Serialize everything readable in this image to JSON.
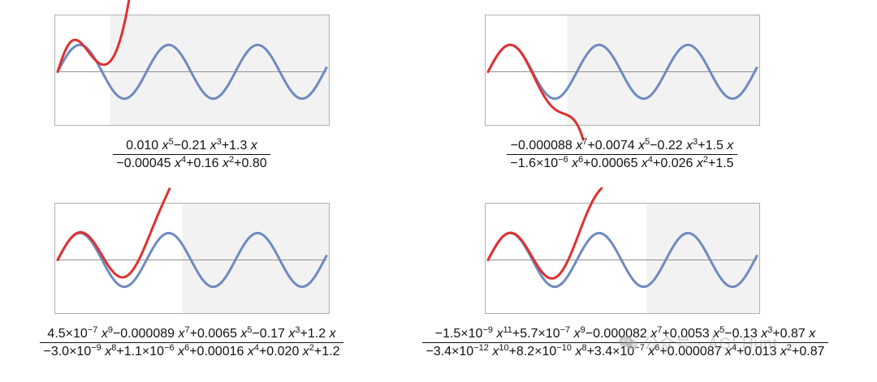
{
  "chart_data": [
    {
      "type": "line",
      "x_range": [
        0,
        19
      ],
      "y_range": [
        -1.7,
        2.0
      ],
      "shaded_from_x": 3.7,
      "series": [
        {
          "values_fn": "sin(x)",
          "color": "#6f8ac0"
        },
        {
          "values_fn": "(0.010 x^5 - 0.21 x^3 + 1.3 x) / (-0.00045 x^4 + 0.16 x^2 + 0.80)",
          "color": "#e03030"
        }
      ],
      "formula": {
        "numerator": [
          {
            "t": "0.010 "
          },
          {
            "i": "x"
          },
          {
            "s": "5"
          },
          {
            "t": "−0.21 "
          },
          {
            "i": "x"
          },
          {
            "s": "3"
          },
          {
            "t": "+1.3 "
          },
          {
            "i": "x"
          }
        ],
        "denominator": [
          {
            "t": "−0.00045 "
          },
          {
            "i": "x"
          },
          {
            "s": "4"
          },
          {
            "t": "+0.16 "
          },
          {
            "i": "x"
          },
          {
            "s": "2"
          },
          {
            "t": "+0.80"
          }
        ]
      }
    },
    {
      "type": "line",
      "x_range": [
        0,
        19
      ],
      "y_range": [
        -1.7,
        2.0
      ],
      "shaded_from_x": 5.6,
      "series": [
        {
          "values_fn": "sin(x)",
          "color": "#6f8ac0"
        },
        {
          "values_fn": "(−0.000088 x^7 + 0.0074 x^5 − 0.22 x^3 + 1.5 x) / (−1.6e-6 x^6 + 0.00065 x^4 + 0.026 x^2 + 1.5)",
          "color": "#e03030"
        }
      ],
      "formula": {
        "numerator": [
          {
            "t": "−0.000088 "
          },
          {
            "i": "x"
          },
          {
            "s": "7"
          },
          {
            "t": "+0.0074 "
          },
          {
            "i": "x"
          },
          {
            "s": "5"
          },
          {
            "t": "−0.22 "
          },
          {
            "i": "x"
          },
          {
            "s": "3"
          },
          {
            "t": "+1.5 "
          },
          {
            "i": "x"
          }
        ],
        "denominator": [
          {
            "t": "−1.6×10"
          },
          {
            "s": "−6"
          },
          {
            "t": " "
          },
          {
            "i": "x"
          },
          {
            "s": "6"
          },
          {
            "t": "+0.00065 "
          },
          {
            "i": "x"
          },
          {
            "s": "4"
          },
          {
            "t": "+0.026 "
          },
          {
            "i": "x"
          },
          {
            "s": "2"
          },
          {
            "t": "+1.5"
          }
        ]
      }
    },
    {
      "type": "line",
      "x_range": [
        0,
        19
      ],
      "y_range": [
        -1.7,
        2.0
      ],
      "shaded_from_x": 8.8,
      "series": [
        {
          "values_fn": "sin(x)",
          "color": "#6f8ac0"
        },
        {
          "values_fn": "(4.5e-7 x^9 − 0.000089 x^7 + 0.0065 x^5 − 0.17 x^3 + 1.2 x) / (−3.0e-9 x^8 + 1.1e-6 x^6 + 0.00016 x^4 + 0.020 x^2 + 1.2)",
          "color": "#e03030"
        }
      ],
      "formula": {
        "numerator": [
          {
            "t": "4.5×10"
          },
          {
            "s": "−7"
          },
          {
            "t": " "
          },
          {
            "i": "x"
          },
          {
            "s": "9"
          },
          {
            "t": "−0.000089 "
          },
          {
            "i": "x"
          },
          {
            "s": "7"
          },
          {
            "t": "+0.0065 "
          },
          {
            "i": "x"
          },
          {
            "s": "5"
          },
          {
            "t": "−0.17 "
          },
          {
            "i": "x"
          },
          {
            "s": "3"
          },
          {
            "t": "+1.2 "
          },
          {
            "i": "x"
          }
        ],
        "denominator": [
          {
            "t": "−3.0×10"
          },
          {
            "s": "−9"
          },
          {
            "t": " "
          },
          {
            "i": "x"
          },
          {
            "s": "8"
          },
          {
            "t": "+1.1×10"
          },
          {
            "s": "−6"
          },
          {
            "t": " "
          },
          {
            "i": "x"
          },
          {
            "s": "6"
          },
          {
            "t": "+0.00016 "
          },
          {
            "i": "x"
          },
          {
            "s": "4"
          },
          {
            "t": "+0.020 "
          },
          {
            "i": "x"
          },
          {
            "s": "2"
          },
          {
            "t": "+1.2"
          }
        ]
      }
    },
    {
      "type": "line",
      "x_range": [
        0,
        19
      ],
      "y_range": [
        -1.7,
        2.0
      ],
      "shaded_from_x": 11.2,
      "series": [
        {
          "values_fn": "sin(x)",
          "color": "#6f8ac0"
        },
        {
          "values_fn": "(−1.5e-9 x^11 + 5.7e-7 x^9 − 0.000082 x^7 + 0.0053 x^5 − 0.13 x^3 + 0.87 x) / (−3.4e-12 x^10 + 8.2e-10 x^8 + 3.4e-7 x^6 + 0.000087 x^4 + 0.013 x^2 + 0.87)",
          "color": "#e03030"
        }
      ],
      "formula": {
        "numerator": [
          {
            "t": "−1.5×10"
          },
          {
            "s": "−9"
          },
          {
            "t": " "
          },
          {
            "i": "x"
          },
          {
            "s": "11"
          },
          {
            "t": "+5.7×10"
          },
          {
            "s": "−7"
          },
          {
            "t": " "
          },
          {
            "i": "x"
          },
          {
            "s": "9"
          },
          {
            "t": "−0.000082 "
          },
          {
            "i": "x"
          },
          {
            "s": "7"
          },
          {
            "t": "+0.0053 "
          },
          {
            "i": "x"
          },
          {
            "s": "5"
          },
          {
            "t": "−0.13 "
          },
          {
            "i": "x"
          },
          {
            "s": "3"
          },
          {
            "t": "+0.87 "
          },
          {
            "i": "x"
          }
        ],
        "denominator": [
          {
            "t": "−3.4×10"
          },
          {
            "s": "−12"
          },
          {
            "t": " "
          },
          {
            "i": "x"
          },
          {
            "s": "10"
          },
          {
            "t": "+8.2×10"
          },
          {
            "s": "−10"
          },
          {
            "t": " "
          },
          {
            "i": "x"
          },
          {
            "s": "8"
          },
          {
            "t": "+3.4×10"
          },
          {
            "s": "−7"
          },
          {
            "t": " "
          },
          {
            "i": "x"
          },
          {
            "s": "6"
          },
          {
            "t": "+0.000087 "
          },
          {
            "i": "x"
          },
          {
            "s": "4"
          },
          {
            "t": "+0.013 "
          },
          {
            "i": "x"
          },
          {
            "s": "2"
          },
          {
            "t": "+0.87"
          }
        ]
      }
    }
  ],
  "watermark": {
    "text": "公众号 · AGI Hunt",
    "icon": "wechat-icon"
  },
  "colors": {
    "sine": "#6f8ac0",
    "approx": "#e03030",
    "shade": "#f2f2f2",
    "frame": "#b0b0b0",
    "axis": "#909090"
  }
}
